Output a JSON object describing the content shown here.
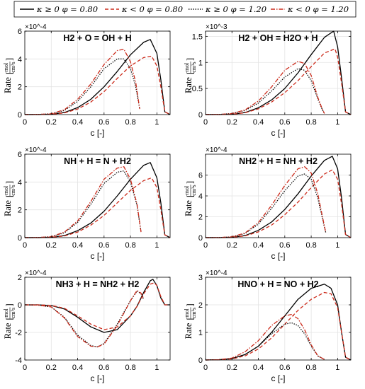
{
  "legend": [
    {
      "label": "κ ≥ 0  φ = 0.80",
      "color": "#000000",
      "dash": "solid"
    },
    {
      "label": "κ < 0  φ = 0.80",
      "color": "#cc2a1a",
      "dash": "dashed"
    },
    {
      "label": "κ ≥ 0  φ = 1.20",
      "color": "#000000",
      "dash": "dotted"
    },
    {
      "label": "κ < 0  φ = 1.20",
      "color": "#cc2a1a",
      "dash": "dashdot"
    }
  ],
  "labels": {
    "ylabel": "Rate",
    "unit_num": "mol",
    "unit_den": "cm³s",
    "xlabel": "c [-]"
  },
  "chart_data": [
    {
      "type": "line",
      "title": "H2 + O = OH + H",
      "exponent": "×10^-4",
      "xlim": [
        0,
        1.1
      ],
      "ylim": [
        0,
        6
      ],
      "xticks": [
        0,
        0.2,
        0.4,
        0.6,
        0.8,
        1
      ],
      "yticks": [
        0,
        2,
        4,
        6
      ],
      "xticklabels": [
        "0",
        "0.2",
        "0.4",
        "0.6",
        "0.8",
        "1"
      ],
      "yticklabels": [
        "0",
        "2",
        "4",
        "6"
      ],
      "grid": true,
      "series": [
        {
          "legend_index": 0,
          "x": [
            0,
            0.1,
            0.2,
            0.3,
            0.4,
            0.5,
            0.6,
            0.7,
            0.8,
            0.9,
            0.95,
            1.0,
            1.03,
            1.06,
            1.1
          ],
          "y": [
            0,
            0,
            0.02,
            0.15,
            0.5,
            1.1,
            2.0,
            3.1,
            4.3,
            5.2,
            5.4,
            4.4,
            2.5,
            0.2,
            0
          ]
        },
        {
          "legend_index": 1,
          "x": [
            0,
            0.1,
            0.2,
            0.3,
            0.4,
            0.5,
            0.6,
            0.7,
            0.8,
            0.9,
            0.96,
            1.0,
            1.03,
            1.06,
            1.1
          ],
          "y": [
            0,
            0,
            0.02,
            0.12,
            0.4,
            0.9,
            1.65,
            2.6,
            3.5,
            4.1,
            4.2,
            3.5,
            2.0,
            0.2,
            0
          ]
        },
        {
          "legend_index": 2,
          "x": [
            0,
            0.1,
            0.2,
            0.3,
            0.4,
            0.5,
            0.6,
            0.7,
            0.75,
            0.8,
            0.84,
            0.87
          ],
          "y": [
            0,
            0.01,
            0.05,
            0.3,
            0.95,
            2.0,
            3.3,
            4.0,
            4.0,
            3.3,
            2.0,
            0.4
          ]
        },
        {
          "legend_index": 3,
          "x": [
            0,
            0.1,
            0.2,
            0.3,
            0.4,
            0.5,
            0.6,
            0.7,
            0.75,
            0.8,
            0.84,
            0.87
          ],
          "y": [
            0,
            0.01,
            0.06,
            0.35,
            1.1,
            2.2,
            3.6,
            4.6,
            4.7,
            3.8,
            2.3,
            0.4
          ]
        }
      ]
    },
    {
      "type": "line",
      "title": "H2 + OH = H2O + H",
      "exponent": "×10^-3",
      "xlim": [
        0,
        1.1
      ],
      "ylim": [
        0,
        1.6
      ],
      "xticks": [
        0,
        0.2,
        0.4,
        0.6,
        0.8,
        1
      ],
      "yticks": [
        0,
        0.5,
        1,
        1.5
      ],
      "xticklabels": [
        "0",
        "0.2",
        "0.4",
        "0.6",
        "0.8",
        "1"
      ],
      "yticklabels": [
        "0",
        "0.5",
        "1",
        "1.5"
      ],
      "grid": true,
      "series": [
        {
          "legend_index": 0,
          "x": [
            0,
            0.1,
            0.2,
            0.3,
            0.4,
            0.5,
            0.6,
            0.7,
            0.8,
            0.9,
            0.97,
            1.0,
            1.03,
            1.06,
            1.1
          ],
          "y": [
            0,
            0,
            0.005,
            0.04,
            0.13,
            0.28,
            0.5,
            0.8,
            1.15,
            1.48,
            1.6,
            1.3,
            0.7,
            0.05,
            0
          ]
        },
        {
          "legend_index": 1,
          "x": [
            0,
            0.1,
            0.2,
            0.3,
            0.4,
            0.5,
            0.6,
            0.7,
            0.8,
            0.9,
            0.98,
            1.0,
            1.03,
            1.06,
            1.1
          ],
          "y": [
            0,
            0,
            0.005,
            0.035,
            0.11,
            0.24,
            0.42,
            0.65,
            0.92,
            1.18,
            1.26,
            1.1,
            0.6,
            0.05,
            0
          ]
        },
        {
          "legend_index": 2,
          "x": [
            0,
            0.1,
            0.2,
            0.3,
            0.4,
            0.5,
            0.6,
            0.7,
            0.75,
            0.8,
            0.85,
            0.88,
            0.9
          ],
          "y": [
            0,
            0.003,
            0.02,
            0.08,
            0.22,
            0.45,
            0.72,
            0.88,
            0.85,
            0.65,
            0.3,
            0.12,
            0.02
          ]
        },
        {
          "legend_index": 3,
          "x": [
            0,
            0.1,
            0.2,
            0.3,
            0.4,
            0.5,
            0.6,
            0.7,
            0.75,
            0.8,
            0.85,
            0.88,
            0.9
          ],
          "y": [
            0,
            0.003,
            0.02,
            0.09,
            0.26,
            0.53,
            0.85,
            1.02,
            0.98,
            0.75,
            0.33,
            0.13,
            0.02
          ]
        }
      ]
    },
    {
      "type": "line",
      "title": "NH + H = N + H2",
      "exponent": "×10^-4",
      "xlim": [
        0,
        1.1
      ],
      "ylim": [
        0,
        6
      ],
      "xticks": [
        0,
        0.2,
        0.4,
        0.6,
        0.8,
        1
      ],
      "yticks": [
        0,
        2,
        4,
        6
      ],
      "xticklabels": [
        "0",
        "0.2",
        "0.4",
        "0.6",
        "0.8",
        "1"
      ],
      "yticklabels": [
        "0",
        "2",
        "4",
        "6"
      ],
      "grid": true,
      "series": [
        {
          "legend_index": 0,
          "x": [
            0,
            0.1,
            0.2,
            0.3,
            0.4,
            0.5,
            0.6,
            0.7,
            0.8,
            0.9,
            0.95,
            1.0,
            1.03,
            1.06,
            1.1
          ],
          "y": [
            0,
            0,
            0.02,
            0.15,
            0.5,
            1.05,
            1.9,
            3.0,
            4.2,
            5.2,
            5.4,
            4.3,
            2.5,
            0.2,
            0
          ]
        },
        {
          "legend_index": 1,
          "x": [
            0,
            0.1,
            0.2,
            0.3,
            0.4,
            0.5,
            0.6,
            0.7,
            0.8,
            0.9,
            0.96,
            1.0,
            1.03,
            1.06,
            1.1
          ],
          "y": [
            0,
            0,
            0.02,
            0.12,
            0.4,
            0.9,
            1.6,
            2.5,
            3.4,
            4.1,
            4.3,
            3.6,
            2.0,
            0.2,
            0
          ]
        },
        {
          "legend_index": 2,
          "x": [
            0,
            0.1,
            0.2,
            0.3,
            0.4,
            0.5,
            0.6,
            0.7,
            0.75,
            0.8,
            0.85,
            0.88
          ],
          "y": [
            0,
            0.01,
            0.06,
            0.35,
            1.1,
            2.4,
            3.9,
            4.7,
            4.8,
            4.0,
            2.3,
            0.4
          ]
        },
        {
          "legend_index": 3,
          "x": [
            0,
            0.1,
            0.2,
            0.3,
            0.4,
            0.5,
            0.6,
            0.7,
            0.75,
            0.8,
            0.85,
            0.88
          ],
          "y": [
            0,
            0.01,
            0.07,
            0.4,
            1.2,
            2.6,
            4.2,
            5.0,
            5.1,
            4.2,
            2.4,
            0.4
          ]
        }
      ]
    },
    {
      "type": "line",
      "title": "NH2 + H = NH + H2",
      "exponent": "×10^-4",
      "xlim": [
        0,
        1.1
      ],
      "ylim": [
        0,
        8
      ],
      "xticks": [
        0,
        0.2,
        0.4,
        0.6,
        0.8,
        1
      ],
      "yticks": [
        0,
        2,
        4,
        6
      ],
      "xticklabels": [
        "0",
        "0.2",
        "0.4",
        "0.6",
        "0.8",
        "1"
      ],
      "yticklabels": [
        "0",
        "2",
        "4",
        "6"
      ],
      "grid": true,
      "series": [
        {
          "legend_index": 0,
          "x": [
            0,
            0.1,
            0.2,
            0.3,
            0.4,
            0.5,
            0.6,
            0.7,
            0.8,
            0.9,
            0.96,
            1.0,
            1.03,
            1.06,
            1.1
          ],
          "y": [
            0,
            0,
            0.03,
            0.2,
            0.7,
            1.5,
            2.7,
            4.2,
            5.9,
            7.4,
            7.8,
            6.6,
            3.8,
            0.3,
            0
          ]
        },
        {
          "legend_index": 1,
          "x": [
            0,
            0.1,
            0.2,
            0.3,
            0.4,
            0.5,
            0.6,
            0.7,
            0.8,
            0.9,
            0.96,
            1.0,
            1.03,
            1.06,
            1.1
          ],
          "y": [
            0,
            0,
            0.02,
            0.17,
            0.55,
            1.2,
            2.2,
            3.4,
            4.8,
            6.1,
            6.5,
            5.6,
            3.2,
            0.3,
            0
          ]
        },
        {
          "legend_index": 2,
          "x": [
            0,
            0.1,
            0.2,
            0.3,
            0.4,
            0.5,
            0.6,
            0.7,
            0.75,
            0.8,
            0.85,
            0.9,
            0.91
          ],
          "y": [
            0,
            0.01,
            0.07,
            0.4,
            1.3,
            2.8,
            4.5,
            5.9,
            6.1,
            5.6,
            3.8,
            1.0,
            0.5
          ]
        },
        {
          "legend_index": 3,
          "x": [
            0,
            0.1,
            0.2,
            0.3,
            0.4,
            0.5,
            0.6,
            0.7,
            0.75,
            0.8,
            0.85,
            0.9,
            0.91
          ],
          "y": [
            0,
            0.01,
            0.08,
            0.45,
            1.45,
            3.1,
            5.0,
            6.6,
            6.8,
            6.2,
            4.2,
            1.1,
            0.5
          ]
        }
      ]
    },
    {
      "type": "line",
      "title": "NH3 + H = NH2 + H2",
      "exponent": "×10^-4",
      "xlim": [
        0,
        1.1
      ],
      "ylim": [
        -4,
        2
      ],
      "xticks": [
        0,
        0.2,
        0.4,
        0.6,
        0.8,
        1
      ],
      "yticks": [
        -4,
        -2,
        0,
        2
      ],
      "xticklabels": [
        "0",
        "0.2",
        "0.4",
        "0.6",
        "0.8",
        "1"
      ],
      "yticklabels": [
        "-4",
        "-2",
        "0",
        "2"
      ],
      "grid": true,
      "series": [
        {
          "legend_index": 0,
          "x": [
            0,
            0.1,
            0.2,
            0.3,
            0.4,
            0.5,
            0.6,
            0.7,
            0.8,
            0.85,
            0.9,
            0.95,
            0.97,
            1.0,
            1.03,
            1.06,
            1.1
          ],
          "y": [
            0,
            0,
            -0.05,
            -0.3,
            -0.9,
            -1.6,
            -2.0,
            -1.8,
            -0.8,
            -0.1,
            0.9,
            1.75,
            1.85,
            1.4,
            0.5,
            0,
            0
          ]
        },
        {
          "legend_index": 1,
          "x": [
            0,
            0.1,
            0.2,
            0.3,
            0.4,
            0.5,
            0.6,
            0.7,
            0.8,
            0.85,
            0.9,
            0.95,
            0.98,
            1.0,
            1.03,
            1.06,
            1.1
          ],
          "y": [
            0,
            0,
            -0.04,
            -0.25,
            -0.8,
            -1.4,
            -1.8,
            -1.6,
            -0.8,
            -0.1,
            0.8,
            1.5,
            1.6,
            1.4,
            0.6,
            0,
            0
          ]
        },
        {
          "legend_index": 2,
          "x": [
            0,
            0.1,
            0.2,
            0.3,
            0.4,
            0.5,
            0.55,
            0.6,
            0.7,
            0.8,
            0.85,
            0.88,
            0.9
          ],
          "y": [
            0,
            -0.02,
            -0.15,
            -0.9,
            -2.2,
            -2.95,
            -3.05,
            -2.8,
            -1.4,
            0.3,
            1.0,
            0.8,
            0.4
          ]
        },
        {
          "legend_index": 3,
          "x": [
            0,
            0.1,
            0.2,
            0.3,
            0.4,
            0.5,
            0.55,
            0.6,
            0.7,
            0.8,
            0.85,
            0.88,
            0.9
          ],
          "y": [
            0,
            -0.02,
            -0.15,
            -0.95,
            -2.3,
            -3.0,
            -3.05,
            -2.85,
            -1.5,
            0.3,
            1.05,
            0.85,
            0.45
          ]
        }
      ]
    },
    {
      "type": "line",
      "title": "HNO + H = NO + H2",
      "exponent": "×10^-4",
      "xlim": [
        0,
        1.1
      ],
      "ylim": [
        0,
        3
      ],
      "xticks": [
        0,
        0.2,
        0.4,
        0.6,
        0.8,
        1
      ],
      "yticks": [
        0,
        1,
        2,
        3
      ],
      "xticklabels": [
        "0",
        "0.2",
        "0.4",
        "0.6",
        "0.8",
        "1"
      ],
      "yticklabels": [
        "0",
        "1",
        "2",
        "3"
      ],
      "grid": true,
      "series": [
        {
          "legend_index": 0,
          "x": [
            0,
            0.1,
            0.2,
            0.3,
            0.4,
            0.5,
            0.6,
            0.7,
            0.8,
            0.9,
            0.95,
            1.0,
            1.03,
            1.06,
            1.1
          ],
          "y": [
            0,
            0.01,
            0.05,
            0.2,
            0.5,
            1.0,
            1.6,
            2.2,
            2.6,
            2.75,
            2.6,
            2.0,
            1.0,
            0.1,
            0
          ]
        },
        {
          "legend_index": 1,
          "x": [
            0,
            0.1,
            0.2,
            0.3,
            0.4,
            0.5,
            0.6,
            0.7,
            0.8,
            0.9,
            0.95,
            1.0,
            1.03,
            1.06,
            1.1
          ],
          "y": [
            0,
            0.01,
            0.04,
            0.15,
            0.4,
            0.8,
            1.3,
            1.8,
            2.2,
            2.45,
            2.4,
            1.9,
            1.0,
            0.1,
            0
          ]
        },
        {
          "legend_index": 2,
          "x": [
            0,
            0.1,
            0.2,
            0.3,
            0.4,
            0.5,
            0.6,
            0.65,
            0.7,
            0.75,
            0.8,
            0.85,
            0.9
          ],
          "y": [
            0,
            0.01,
            0.05,
            0.2,
            0.5,
            0.95,
            1.3,
            1.35,
            1.25,
            0.95,
            0.5,
            0.15,
            0.02
          ]
        },
        {
          "legend_index": 3,
          "x": [
            0,
            0.1,
            0.2,
            0.3,
            0.4,
            0.5,
            0.6,
            0.65,
            0.7,
            0.75,
            0.8,
            0.85,
            0.9
          ],
          "y": [
            0,
            0.01,
            0.07,
            0.3,
            0.7,
            1.25,
            1.6,
            1.65,
            1.5,
            1.1,
            0.55,
            0.15,
            0.02
          ]
        }
      ]
    }
  ]
}
